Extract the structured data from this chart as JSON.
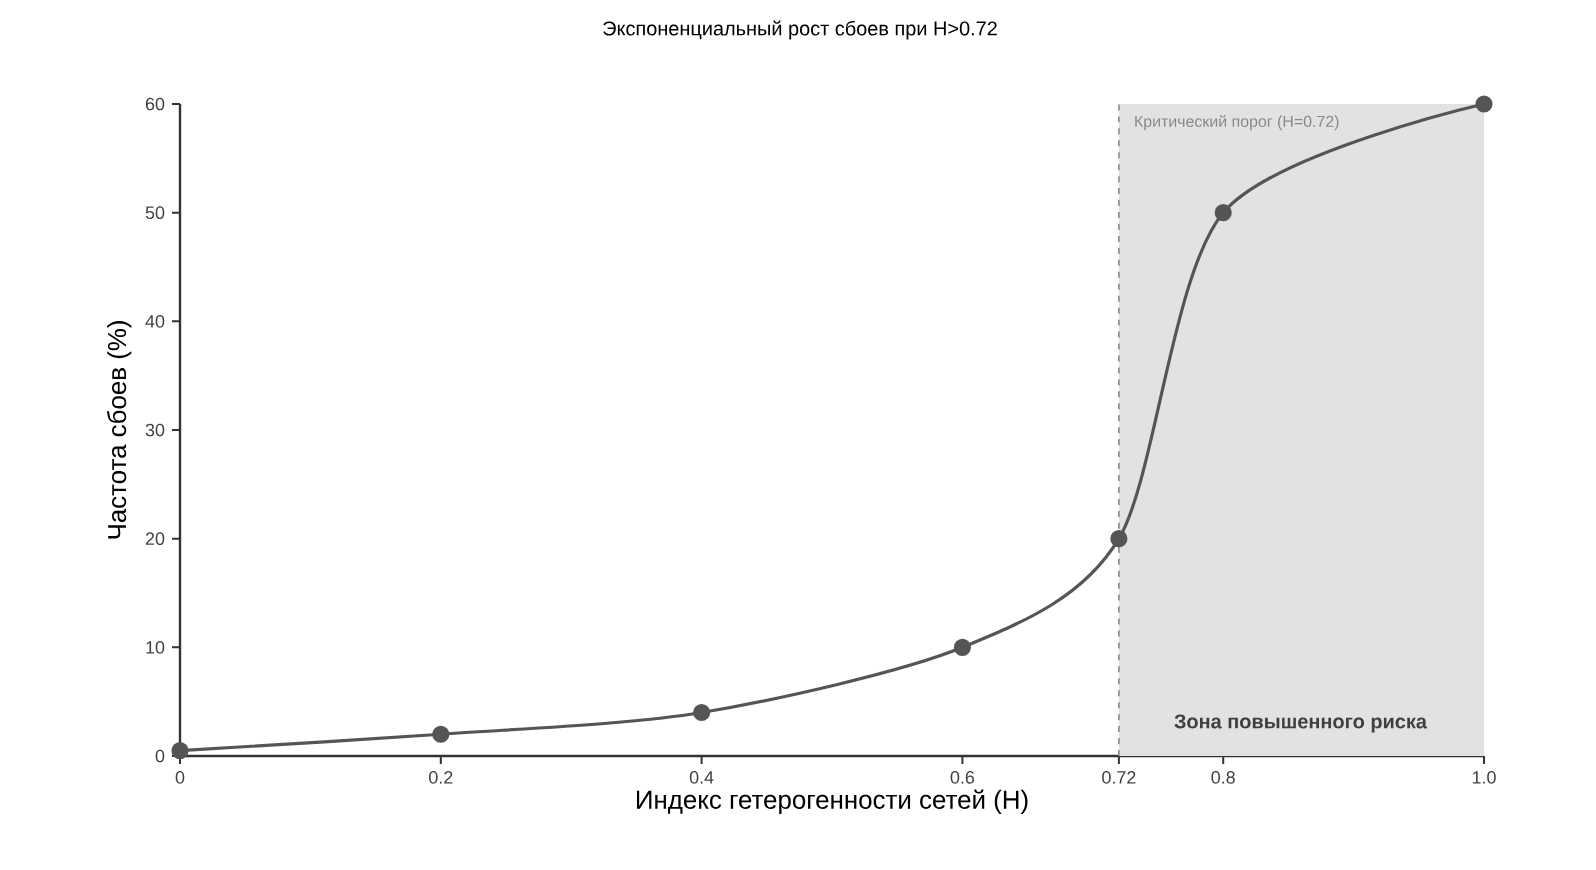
{
  "chart_data": {
    "type": "line",
    "title": "Экспоненциальный рост сбоев при H>0.72",
    "xlabel": "Индекс гетерогенности сетей (H)",
    "ylabel": "Частота сбоев (%)",
    "x": [
      0,
      0.2,
      0.4,
      0.6,
      0.72,
      0.8,
      1.0
    ],
    "series": [
      {
        "color": "#555555",
        "values": [
          0.5,
          2,
          4,
          10,
          20,
          50,
          60
        ]
      }
    ],
    "xlim": [
      0,
      1
    ],
    "ylim": [
      0,
      60
    ],
    "xticks": [
      0,
      0.2,
      0.4,
      0.6,
      0.72,
      0.8,
      {
        "value": 1,
        "label": "1.0"
      }
    ],
    "yticks": [
      0,
      10,
      20,
      30,
      40,
      50,
      60
    ],
    "marker": "circle",
    "line_style": "solid",
    "grid": false,
    "ref_lines": [
      {
        "axis": "x",
        "value": 0.72,
        "label": "Критический порог (H=0.72)",
        "color": "#888888",
        "line_style": "dashed"
      }
    ],
    "bands": [
      {
        "axis": "x",
        "from": 0.72,
        "to": 1.0,
        "label": "Зона повышенного риска",
        "color": "#e2e2e2"
      }
    ]
  }
}
